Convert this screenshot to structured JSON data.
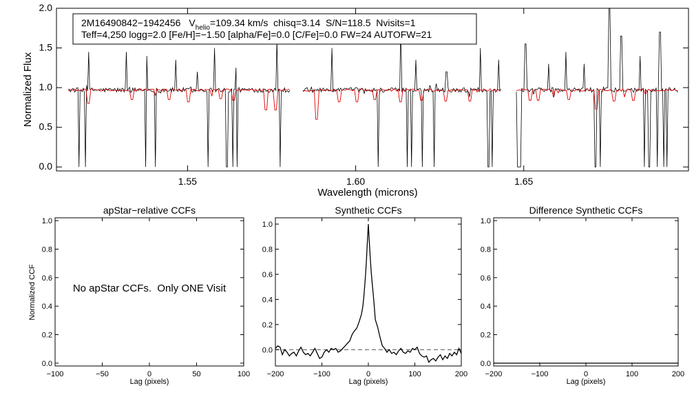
{
  "colors": {
    "observed": "#000000",
    "model": "#dd0000",
    "zero_line": "#555555"
  },
  "annotation": {
    "line1": {
      "id": "2M16490842−1942456",
      "v_prefix": "V",
      "v_sub": "helio",
      "v_rest": "=109.34 km/s  chisq=3.14  S/N=118.5  Nvisits=1"
    },
    "line2": "Teff=4,250 logg=2.0 [Fe/H]=−1.50 [alpha/Fe]=0.0 [C/Fe]=0.0 FW=24 AUTOFW=21"
  },
  "chart_data": [
    {
      "type": "line",
      "panel": "spectrum",
      "xlabel": "Wavelength (microns)",
      "ylabel": "Normalized Flux",
      "xlim": [
        1.511,
        1.699
      ],
      "ylim": [
        -0.05,
        2.0
      ],
      "xticks": [
        "1.55",
        "1.60",
        "1.65"
      ],
      "xtick_values": [
        1.55,
        1.6,
        1.65
      ],
      "yticks": [
        "0.0",
        "0.5",
        "1.0",
        "1.5",
        "2.0"
      ],
      "ytick_values": [
        0.0,
        0.5,
        1.0,
        1.5,
        2.0
      ],
      "continuum": 0.97,
      "segments": [
        [
          1.5145,
          1.5806
        ],
        [
          1.5843,
          1.6432
        ],
        [
          1.6478,
          1.6961
        ]
      ],
      "series": [
        {
          "role": "observed",
          "spikes_up": [
            [
              1.5205,
              1.45
            ],
            [
              1.5318,
              1.45
            ],
            [
              1.5378,
              1.4
            ],
            [
              1.5465,
              1.35
            ],
            [
              1.553,
              1.2
            ],
            [
              1.558,
              1.5
            ],
            [
              1.5645,
              1.25
            ],
            [
              1.5765,
              1.6
            ],
            [
              1.593,
              1.5
            ],
            [
              1.6025,
              1.2
            ],
            [
              1.607,
              1.4
            ],
            [
              1.6135,
              1.85
            ],
            [
              1.618,
              1.35
            ],
            [
              1.627,
              1.2
            ],
            [
              1.637,
              1.5
            ],
            [
              1.6395,
              1.45
            ],
            [
              1.6425,
              1.35
            ],
            [
              1.6505,
              1.55
            ],
            [
              1.6575,
              1.3
            ],
            [
              1.6625,
              1.45
            ],
            [
              1.668,
              1.3
            ],
            [
              1.6755,
              2.0
            ],
            [
              1.679,
              1.65
            ],
            [
              1.6845,
              1.4
            ],
            [
              1.6905,
              1.7
            ],
            [
              1.6925,
              1.95
            ]
          ],
          "spikes_down": [
            [
              1.5178,
              0.0
            ],
            [
              1.5198,
              0.0
            ],
            [
              1.5376,
              0.0
            ],
            [
              1.5404,
              0.0
            ],
            [
              1.5562,
              0.0
            ],
            [
              1.5617,
              0.0
            ],
            [
              1.5634,
              0.0
            ],
            [
              1.5647,
              0.0
            ],
            [
              1.5775,
              0.0
            ],
            [
              1.6068,
              0.0
            ],
            [
              1.6154,
              0.0
            ],
            [
              1.6166,
              0.0
            ],
            [
              1.6199,
              0.0
            ],
            [
              1.6234,
              0.0
            ],
            [
              1.6395,
              0.0
            ],
            [
              1.6405,
              0.0
            ],
            [
              1.6483,
              0.0
            ],
            [
              1.6489,
              0.0
            ],
            [
              1.6713,
              0.0
            ],
            [
              1.6727,
              0.0
            ],
            [
              1.6858,
              0.0
            ],
            [
              1.6873,
              0.0
            ],
            [
              1.6897,
              0.0
            ],
            [
              1.6917,
              0.0
            ],
            [
              1.6927,
              0.0
            ]
          ]
        },
        {
          "role": "model",
          "dips": [
            [
              1.5205,
              0.8
            ],
            [
              1.5335,
              0.85
            ],
            [
              1.5445,
              0.85
            ],
            [
              1.5505,
              0.82
            ],
            [
              1.5598,
              0.86
            ],
            [
              1.5638,
              0.84
            ],
            [
              1.5735,
              0.72
            ],
            [
              1.576,
              0.72
            ],
            [
              1.5885,
              0.6
            ],
            [
              1.5952,
              0.82
            ],
            [
              1.6005,
              0.82
            ],
            [
              1.6055,
              0.85
            ],
            [
              1.6135,
              0.82
            ],
            [
              1.6195,
              0.84
            ],
            [
              1.627,
              0.83
            ],
            [
              1.6338,
              0.83
            ],
            [
              1.652,
              0.84
            ],
            [
              1.6545,
              0.84
            ],
            [
              1.6632,
              0.85
            ],
            [
              1.6715,
              0.73
            ],
            [
              1.6768,
              0.83
            ],
            [
              1.6825,
              0.84
            ]
          ]
        }
      ]
    },
    {
      "type": "line",
      "panel": "apstar",
      "title": "apStar−relative CCFs",
      "xlabel": "Lag (pixels)",
      "ylabel": "Normalized CCF",
      "xlim": [
        -100,
        100
      ],
      "ylim": [
        -0.02,
        1.02
      ],
      "xticks": [
        "−100",
        "−50",
        "0",
        "50",
        "100"
      ],
      "xtick_values": [
        -100,
        -50,
        0,
        50,
        100
      ],
      "yticks": [
        "0.0",
        "0.2",
        "0.4",
        "0.6",
        "0.8",
        "1.0"
      ],
      "ytick_values": [
        0.0,
        0.2,
        0.4,
        0.6,
        0.8,
        1.0
      ],
      "message": "No apStar CCFs.  Only ONE Visit",
      "series": []
    },
    {
      "type": "line",
      "panel": "synthetic",
      "title": "Synthetic CCFs",
      "xlabel": "Lag (pixels)",
      "xlim": [
        -200,
        200
      ],
      "ylim": [
        -0.13,
        1.05
      ],
      "xticks": [
        "−200",
        "−100",
        "0",
        "100",
        "200"
      ],
      "xtick_values": [
        -200,
        -100,
        0,
        100,
        200
      ],
      "yticks": [
        "0.0",
        "0.2",
        "0.4",
        "0.6",
        "0.8",
        "1.0"
      ],
      "ytick_values": [
        0.0,
        0.2,
        0.4,
        0.6,
        0.8,
        1.0
      ],
      "zero_line": 0.0,
      "series": [
        {
          "x": [
            -200,
            -195,
            -190,
            -185,
            -180,
            -175,
            -170,
            -165,
            -160,
            -155,
            -150,
            -145,
            -140,
            -135,
            -130,
            -125,
            -120,
            -115,
            -110,
            -105,
            -100,
            -95,
            -90,
            -85,
            -80,
            -75,
            -70,
            -65,
            -60,
            -55,
            -50,
            -45,
            -40,
            -35,
            -30,
            -25,
            -20,
            -15,
            -12,
            -10,
            -8,
            -6,
            -4,
            -2,
            0,
            2,
            4,
            6,
            8,
            10,
            12,
            15,
            20,
            25,
            30,
            35,
            40,
            45,
            50,
            55,
            60,
            65,
            70,
            75,
            80,
            85,
            90,
            95,
            100,
            105,
            110,
            115,
            120,
            125,
            130,
            135,
            140,
            145,
            150,
            155,
            160,
            165,
            170,
            175,
            180,
            185,
            190,
            195,
            200
          ],
          "y": [
            0.01,
            0.03,
            0.02,
            -0.04,
            0.0,
            -0.02,
            -0.05,
            -0.03,
            -0.02,
            -0.05,
            -0.01,
            0.02,
            -0.02,
            -0.04,
            -0.03,
            -0.05,
            -0.02,
            0.01,
            -0.03,
            -0.07,
            -0.06,
            -0.02,
            0.0,
            -0.02,
            0.01,
            0.0,
            0.01,
            -0.02,
            -0.01,
            0.01,
            0.03,
            0.05,
            0.07,
            0.12,
            0.15,
            0.17,
            0.22,
            0.28,
            0.34,
            0.41,
            0.5,
            0.6,
            0.72,
            0.86,
            1.0,
            0.86,
            0.74,
            0.63,
            0.54,
            0.46,
            0.38,
            0.24,
            0.18,
            0.1,
            0.03,
            0.01,
            -0.02,
            0.0,
            -0.03,
            -0.02,
            -0.04,
            -0.01,
            0.01,
            -0.02,
            -0.03,
            -0.01,
            -0.02,
            0.01,
            0.0,
            0.02,
            -0.03,
            -0.05,
            -0.06,
            -0.05,
            -0.1,
            -0.08,
            -0.07,
            -0.09,
            -0.06,
            -0.04,
            -0.08,
            -0.05,
            -0.07,
            -0.03,
            -0.05,
            -0.02,
            -0.04,
            0.01,
            -0.03
          ]
        }
      ]
    },
    {
      "type": "line",
      "panel": "difference",
      "title": "Difference Synthetic CCFs",
      "xlabel": "Lag (pixels)",
      "xlim": [
        -200,
        200
      ],
      "ylim": [
        -0.02,
        1.02
      ],
      "xticks": [
        "−200",
        "−100",
        "0",
        "100",
        "200"
      ],
      "xtick_values": [
        -200,
        -100,
        0,
        100,
        200
      ],
      "yticks": [
        "0.0",
        "0.2",
        "0.4",
        "0.6",
        "0.8",
        "1.0"
      ],
      "ytick_values": [
        0.0,
        0.2,
        0.4,
        0.6,
        0.8,
        1.0
      ],
      "series": [
        {
          "x": [
            -200,
            200
          ],
          "y": [
            0.0,
            0.0
          ]
        }
      ]
    }
  ]
}
